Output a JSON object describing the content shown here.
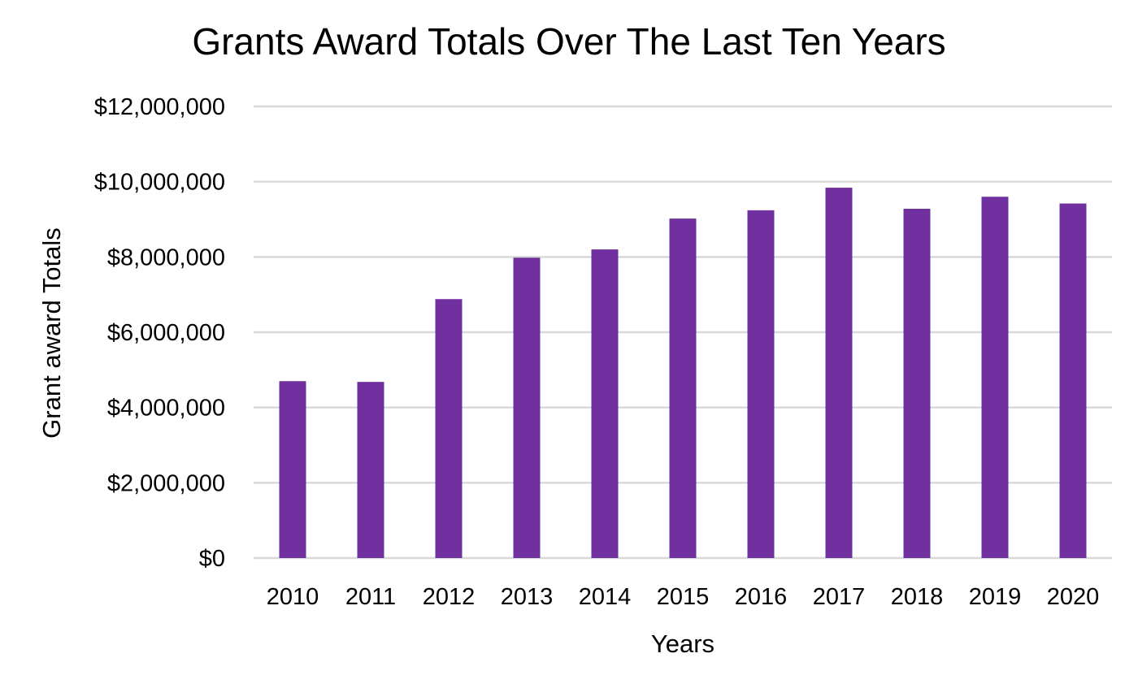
{
  "chart_data": {
    "type": "bar",
    "title": "Grants Award Totals Over The Last Ten Years",
    "xlabel": "Years",
    "ylabel": "Grant award Totals",
    "categories": [
      "2010",
      "2011",
      "2012",
      "2013",
      "2014",
      "2015",
      "2016",
      "2017",
      "2018",
      "2019",
      "2020"
    ],
    "series": [
      {
        "values": [
          4700000,
          4680000,
          6880000,
          7980000,
          8200000,
          9020000,
          9240000,
          9840000,
          9280000,
          9600000,
          9420000
        ]
      }
    ],
    "ylim": [
      0,
      12000000
    ],
    "yticks": [
      0,
      2000000,
      4000000,
      6000000,
      8000000,
      10000000,
      12000000
    ],
    "ytick_labels": [
      "$0",
      "$2,000,000",
      "$4,000,000",
      "$6,000,000",
      "$8,000,000",
      "$10,000,000",
      "$12,000,000"
    ],
    "grid": true,
    "legend": "none",
    "bar_color": "#7030a0"
  }
}
